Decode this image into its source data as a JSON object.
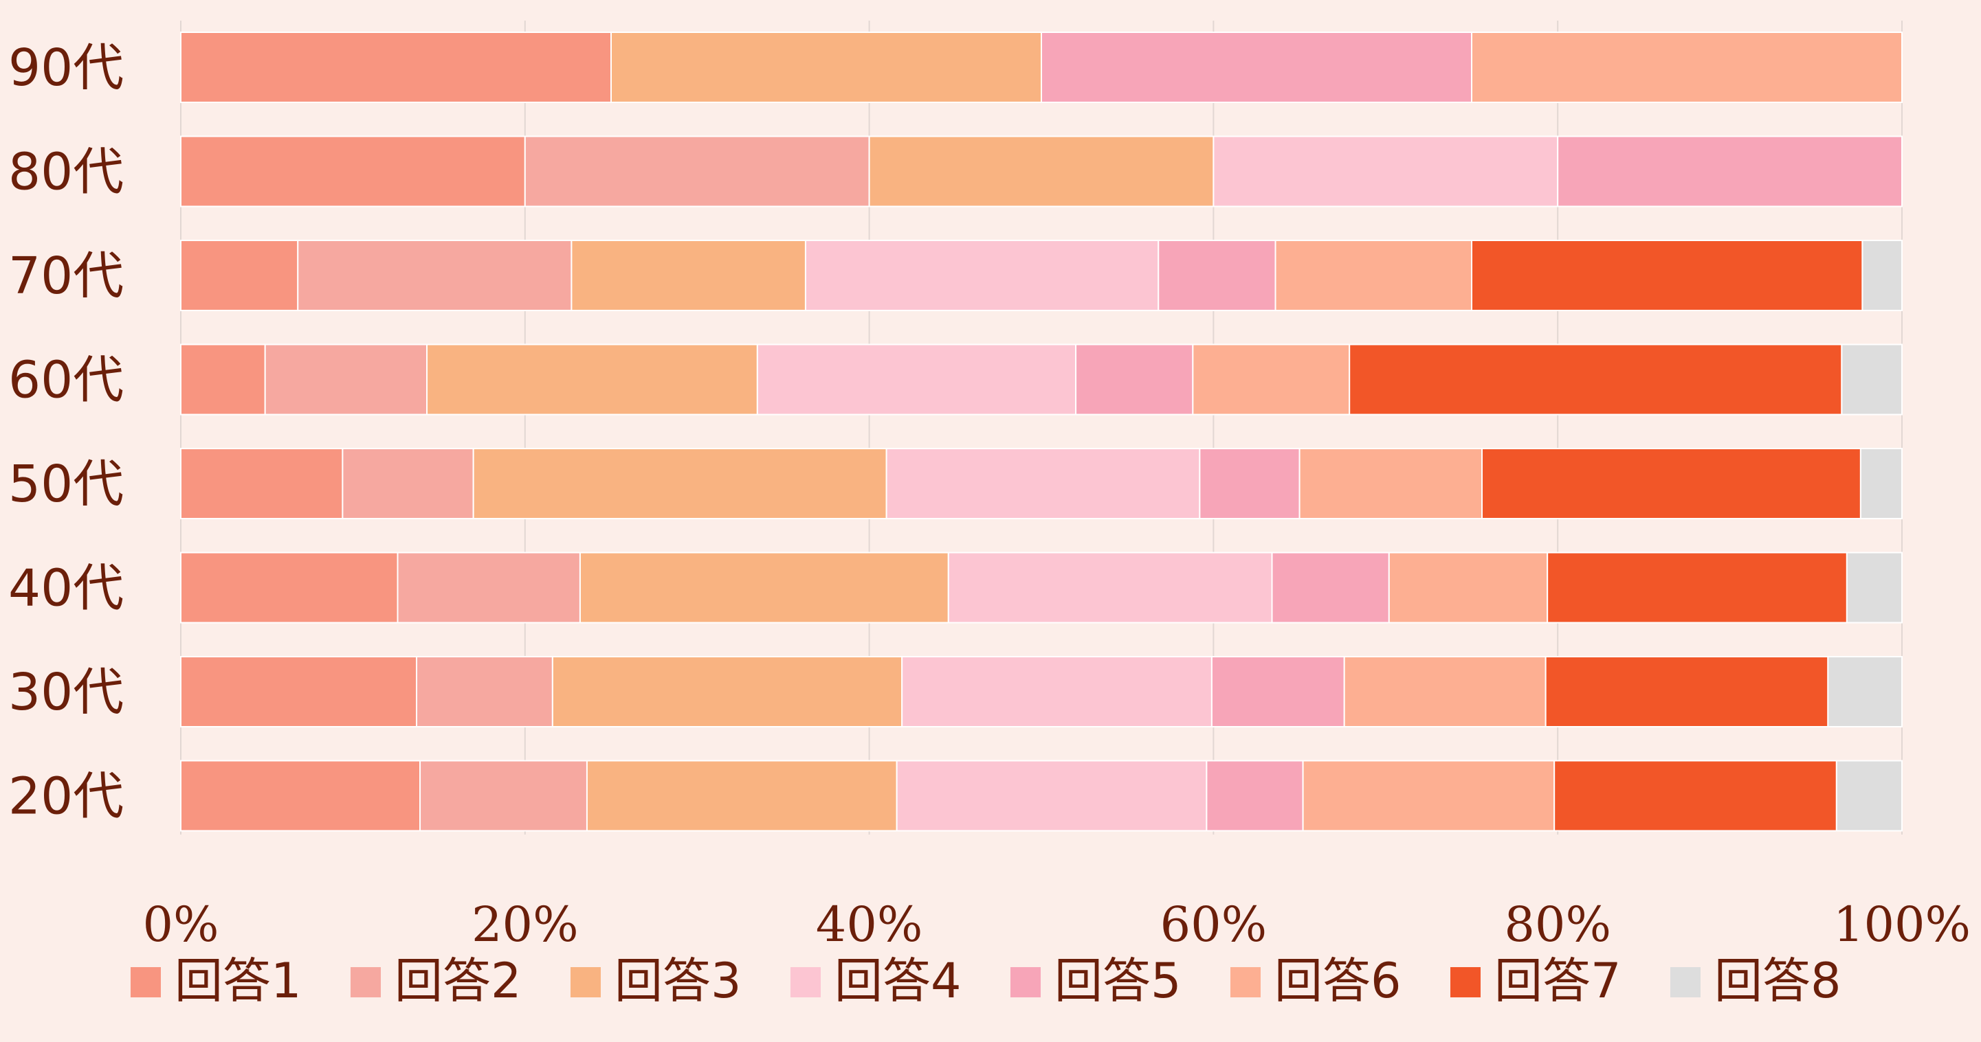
{
  "chart_data": {
    "type": "bar",
    "orientation": "horizontal",
    "stacked": "percent",
    "title": "",
    "xlabel": "",
    "ylabel": "",
    "xlim": [
      0,
      100
    ],
    "grid": "vertical",
    "legend_position": "bottom",
    "background": "#FCEEE9",
    "categories": [
      "90代",
      "80代",
      "70代",
      "60代",
      "50代",
      "40代",
      "30代",
      "20代"
    ],
    "x_ticks": [
      "0%",
      "20%",
      "40%",
      "60%",
      "80%",
      "100%"
    ],
    "x_tick_values": [
      0,
      20,
      40,
      60,
      80,
      100
    ],
    "series": [
      {
        "name": "回答1",
        "color": "#F89580",
        "values": [
          25.0,
          20.0,
          6.8,
          4.9,
          9.4,
          12.6,
          13.7,
          13.9
        ]
      },
      {
        "name": "回答2",
        "color": "#F6A8A0",
        "values": [
          0.0,
          20.0,
          15.9,
          9.4,
          7.6,
          10.6,
          7.9,
          9.7
        ]
      },
      {
        "name": "回答3",
        "color": "#F9B381",
        "values": [
          25.0,
          20.0,
          13.6,
          19.2,
          24.0,
          21.4,
          20.3,
          18.0
        ]
      },
      {
        "name": "回答4",
        "color": "#FCC5D2",
        "values": [
          0.0,
          20.0,
          20.5,
          18.5,
          18.2,
          18.8,
          18.0,
          18.0
        ]
      },
      {
        "name": "回答5",
        "color": "#F7A5B8",
        "values": [
          25.0,
          20.0,
          6.8,
          6.8,
          5.8,
          6.8,
          7.7,
          5.6
        ]
      },
      {
        "name": "回答6",
        "color": "#FDAF92",
        "values": [
          25.0,
          0.0,
          11.4,
          9.1,
          10.6,
          9.2,
          11.7,
          14.6
        ]
      },
      {
        "name": "回答7",
        "color": "#F25628",
        "values": [
          0.0,
          0.0,
          22.7,
          28.6,
          22.0,
          17.4,
          16.4,
          16.4
        ]
      },
      {
        "name": "回答8",
        "color": "#DDDDDD",
        "values": [
          0.0,
          0.0,
          2.3,
          3.5,
          2.4,
          3.2,
          4.3,
          3.8
        ]
      }
    ]
  }
}
